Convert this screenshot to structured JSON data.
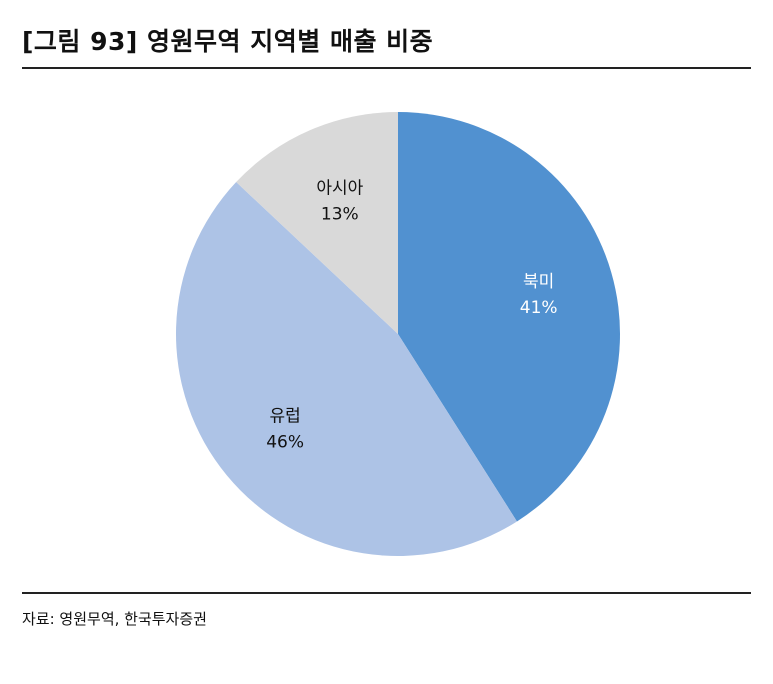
{
  "title": "[그림 93] 영원무역 지역별 매출 비중",
  "source": "자료: 영원무역, 한국투자증권",
  "chart_data": {
    "type": "pie",
    "slices": [
      {
        "label": "북미",
        "value": 41,
        "value_label": "41%",
        "color": "#5191d0",
        "text_color": "#ffffff"
      },
      {
        "label": "유럽",
        "value": 46,
        "value_label": "46%",
        "color": "#adc3e6",
        "text_color": "#111111"
      },
      {
        "label": "아시아",
        "value": 13,
        "value_label": "13%",
        "color": "#d9d9d9",
        "text_color": "#111111"
      }
    ],
    "start": "12 o'clock",
    "direction": "clockwise",
    "legend": "none"
  }
}
